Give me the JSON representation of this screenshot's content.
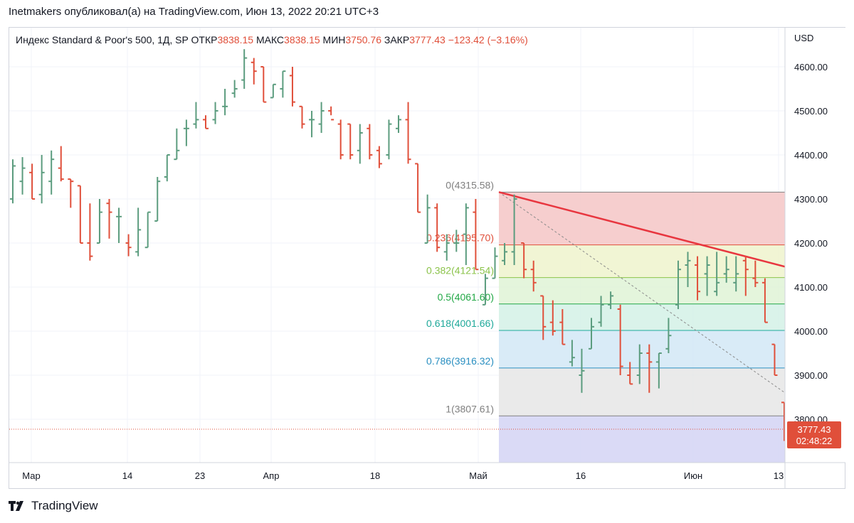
{
  "header": {
    "publisher_line": "Inetmakers опубликовал(а) на TradingView.com, Июн 13, 2022 20:21 UTC+3"
  },
  "legend": {
    "symbol": "Индекс Standard & Poor's 500, 1Д, SP",
    "open_label": "ОТКР",
    "open": "3838.15",
    "high_label": "МАКС",
    "high": "3838.15",
    "low_label": "МИН",
    "low": "3750.76",
    "close_label": "ЗАКР",
    "close": "3777.43",
    "change": "−123.42 (−3.16%)"
  },
  "footer": {
    "brand": "TradingView"
  },
  "price_badge": {
    "price": "3777.43",
    "countdown": "02:48:22"
  },
  "chart_data": {
    "type": "ohlc",
    "currency_label": "USD",
    "y_ticks": [
      "4600.00",
      "4500.00",
      "4400.00",
      "4300.00",
      "4200.00",
      "4100.00",
      "4000.00",
      "3900.00",
      "3800.00"
    ],
    "x_ticks": [
      "Мар",
      "14",
      "23",
      "Апр",
      "18",
      "Май",
      "16",
      "Июн",
      "13"
    ],
    "colors": {
      "up": "#5b9c7e",
      "down": "#e04f3a"
    },
    "fib_levels": [
      {
        "label": "0(4315.58)",
        "value": 4315.58,
        "color": "#808080",
        "fill": "#f5c6c6"
      },
      {
        "label": "0.236(4195.70)",
        "value": 4195.7,
        "color": "#e04f3a",
        "fill": "#eef3cd"
      },
      {
        "label": "0.382(4121.54)",
        "value": 4121.54,
        "color": "#8bc34a",
        "fill": "#dff3d6"
      },
      {
        "label": "0.5(4061.60)",
        "value": 4061.6,
        "color": "#22a846",
        "fill": "#d4f1e6"
      },
      {
        "label": "0.618(4001.66)",
        "value": 4001.66,
        "color": "#1fa99a",
        "fill": "#d2e8f6"
      },
      {
        "label": "0.786(3916.32)",
        "value": 3916.32,
        "color": "#2a8fc1",
        "fill": "#e6e6e6"
      },
      {
        "label": "1(3807.61)",
        "value": 3807.61,
        "color": "#808080",
        "fill": "#d4d4f5"
      }
    ],
    "bars": [
      {
        "o": 4300,
        "h": 4390,
        "l": 4290,
        "c": 4375
      },
      {
        "o": 4340,
        "h": 4395,
        "l": 4310,
        "c": 4370
      },
      {
        "o": 4360,
        "h": 4380,
        "l": 4300,
        "c": 4300
      },
      {
        "o": 4310,
        "h": 4400,
        "l": 4290,
        "c": 4360
      },
      {
        "o": 4340,
        "h": 4410,
        "l": 4310,
        "c": 4390
      },
      {
        "o": 4370,
        "h": 4420,
        "l": 4340,
        "c": 4345
      },
      {
        "o": 4345,
        "h": 4345,
        "l": 4280,
        "c": 4340
      },
      {
        "o": 4330,
        "h": 4330,
        "l": 4200,
        "c": 4200
      },
      {
        "o": 4200,
        "h": 4290,
        "l": 4160,
        "c": 4170
      },
      {
        "o": 4200,
        "h": 4300,
        "l": 4200,
        "c": 4270
      },
      {
        "o": 4290,
        "h": 4300,
        "l": 4210,
        "c": 4270
      },
      {
        "o": 4260,
        "h": 4280,
        "l": 4200,
        "c": 4260
      },
      {
        "o": 4200,
        "h": 4220,
        "l": 4170,
        "c": 4190
      },
      {
        "o": 4180,
        "h": 4280,
        "l": 4170,
        "c": 4230
      },
      {
        "o": 4190,
        "h": 4270,
        "l": 4190,
        "c": 4270
      },
      {
        "o": 4250,
        "h": 4350,
        "l": 4250,
        "c": 4340
      },
      {
        "o": 4350,
        "h": 4400,
        "l": 4340,
        "c": 4400
      },
      {
        "o": 4390,
        "h": 4460,
        "l": 4390,
        "c": 4410
      },
      {
        "o": 4460,
        "h": 4480,
        "l": 4420,
        "c": 4460
      },
      {
        "o": 4470,
        "h": 4520,
        "l": 4460,
        "c": 4480
      },
      {
        "o": 4480,
        "h": 4490,
        "l": 4460,
        "c": 4460
      },
      {
        "o": 4480,
        "h": 4520,
        "l": 4470,
        "c": 4500
      },
      {
        "o": 4510,
        "h": 4550,
        "l": 4490,
        "c": 4510
      },
      {
        "o": 4540,
        "h": 4570,
        "l": 4530,
        "c": 4550
      },
      {
        "o": 4570,
        "h": 4640,
        "l": 4550,
        "c": 4620
      },
      {
        "o": 4610,
        "h": 4620,
        "l": 4560,
        "c": 4590
      },
      {
        "o": 4600,
        "h": 4600,
        "l": 4520,
        "c": 4520
      },
      {
        "o": 4530,
        "h": 4560,
        "l": 4530,
        "c": 4560
      },
      {
        "o": 4550,
        "h": 4590,
        "l": 4530,
        "c": 4590
      },
      {
        "o": 4580,
        "h": 4600,
        "l": 4510,
        "c": 4520
      },
      {
        "o": 4510,
        "h": 4510,
        "l": 4460,
        "c": 4470
      },
      {
        "o": 4480,
        "h": 4500,
        "l": 4440,
        "c": 4480
      },
      {
        "o": 4470,
        "h": 4520,
        "l": 4450,
        "c": 4500
      },
      {
        "o": 4500,
        "h": 4510,
        "l": 4490,
        "c": 4480
      },
      {
        "o": 4470,
        "h": 4480,
        "l": 4390,
        "c": 4400
      },
      {
        "o": 4470,
        "h": 4470,
        "l": 4390,
        "c": 4400
      },
      {
        "o": 4410,
        "h": 4470,
        "l": 4380,
        "c": 4450
      },
      {
        "o": 4460,
        "h": 4470,
        "l": 4390,
        "c": 4400
      },
      {
        "o": 4410,
        "h": 4420,
        "l": 4370,
        "c": 4380
      },
      {
        "o": 4400,
        "h": 4480,
        "l": 4390,
        "c": 4470
      },
      {
        "o": 4460,
        "h": 4490,
        "l": 4450,
        "c": 4480
      },
      {
        "o": 4480,
        "h": 4520,
        "l": 4380,
        "c": 4390
      },
      {
        "o": 4380,
        "h": 4380,
        "l": 4270,
        "c": 4270
      },
      {
        "o": 4200,
        "h": 4310,
        "l": 4200,
        "c": 4280
      },
      {
        "o": 4280,
        "h": 4290,
        "l": 4180,
        "c": 4190
      },
      {
        "o": 4180,
        "h": 4220,
        "l": 4160,
        "c": 4200
      },
      {
        "o": 4200,
        "h": 4230,
        "l": 4180,
        "c": 4200
      },
      {
        "o": 4220,
        "h": 4290,
        "l": 4150,
        "c": 4280
      },
      {
        "o": 4270,
        "h": 4300,
        "l": 4140,
        "c": 4140
      },
      {
        "o": 4060,
        "h": 4130,
        "l": 4060,
        "c": 4120
      },
      {
        "o": 4120,
        "h": 4190,
        "l": 4120,
        "c": 4170
      },
      {
        "o": 4160,
        "h": 4200,
        "l": 4150,
        "c": 4180
      },
      {
        "o": 4180,
        "h": 4310,
        "l": 4150,
        "c": 4300
      },
      {
        "o": 4200,
        "h": 4200,
        "l": 4120,
        "c": 4140
      },
      {
        "o": 4140,
        "h": 4160,
        "l": 4090,
        "c": 4110
      },
      {
        "o": 4080,
        "h": 4080,
        "l": 3980,
        "c": 4010
      },
      {
        "o": 4020,
        "h": 4070,
        "l": 3990,
        "c": 4000
      },
      {
        "o": 4020,
        "h": 4050,
        "l": 3970,
        "c": 3970
      },
      {
        "o": 3930,
        "h": 3980,
        "l": 3920,
        "c": 3940
      },
      {
        "o": 3900,
        "h": 3960,
        "l": 3860,
        "c": 3910
      },
      {
        "o": 3960,
        "h": 4030,
        "l": 3960,
        "c": 4010
      },
      {
        "o": 4020,
        "h": 4080,
        "l": 4010,
        "c": 4060
      },
      {
        "o": 4060,
        "h": 4090,
        "l": 4050,
        "c": 4080
      },
      {
        "o": 4050,
        "h": 4060,
        "l": 3900,
        "c": 3920
      },
      {
        "o": 3900,
        "h": 3930,
        "l": 3880,
        "c": 3880
      },
      {
        "o": 3900,
        "h": 3970,
        "l": 3880,
        "c": 3950
      },
      {
        "o": 3950,
        "h": 3970,
        "l": 3860,
        "c": 3930
      },
      {
        "o": 3930,
        "h": 3950,
        "l": 3870,
        "c": 3950
      },
      {
        "o": 3960,
        "h": 4030,
        "l": 3950,
        "c": 3990
      },
      {
        "o": 4060,
        "h": 4160,
        "l": 4050,
        "c": 4140
      },
      {
        "o": 4150,
        "h": 4180,
        "l": 4100,
        "c": 4160
      },
      {
        "o": 4150,
        "h": 4170,
        "l": 4070,
        "c": 4090
      },
      {
        "o": 4130,
        "h": 4170,
        "l": 4080,
        "c": 4150
      },
      {
        "o": 4090,
        "h": 4180,
        "l": 4080,
        "c": 4110
      },
      {
        "o": 4130,
        "h": 4170,
        "l": 4110,
        "c": 4140
      },
      {
        "o": 4110,
        "h": 4170,
        "l": 4090,
        "c": 4130
      },
      {
        "o": 4160,
        "h": 4170,
        "l": 4080,
        "c": 4140
      },
      {
        "o": 4120,
        "h": 4160,
        "l": 4100,
        "c": 4110
      },
      {
        "o": 4110,
        "h": 4120,
        "l": 4020,
        "c": 4020
      },
      {
        "o": 3970,
        "h": 3970,
        "l": 3900,
        "c": 3900
      },
      {
        "o": 3838.15,
        "h": 3838.15,
        "l": 3750.76,
        "c": 3777.43
      }
    ]
  }
}
